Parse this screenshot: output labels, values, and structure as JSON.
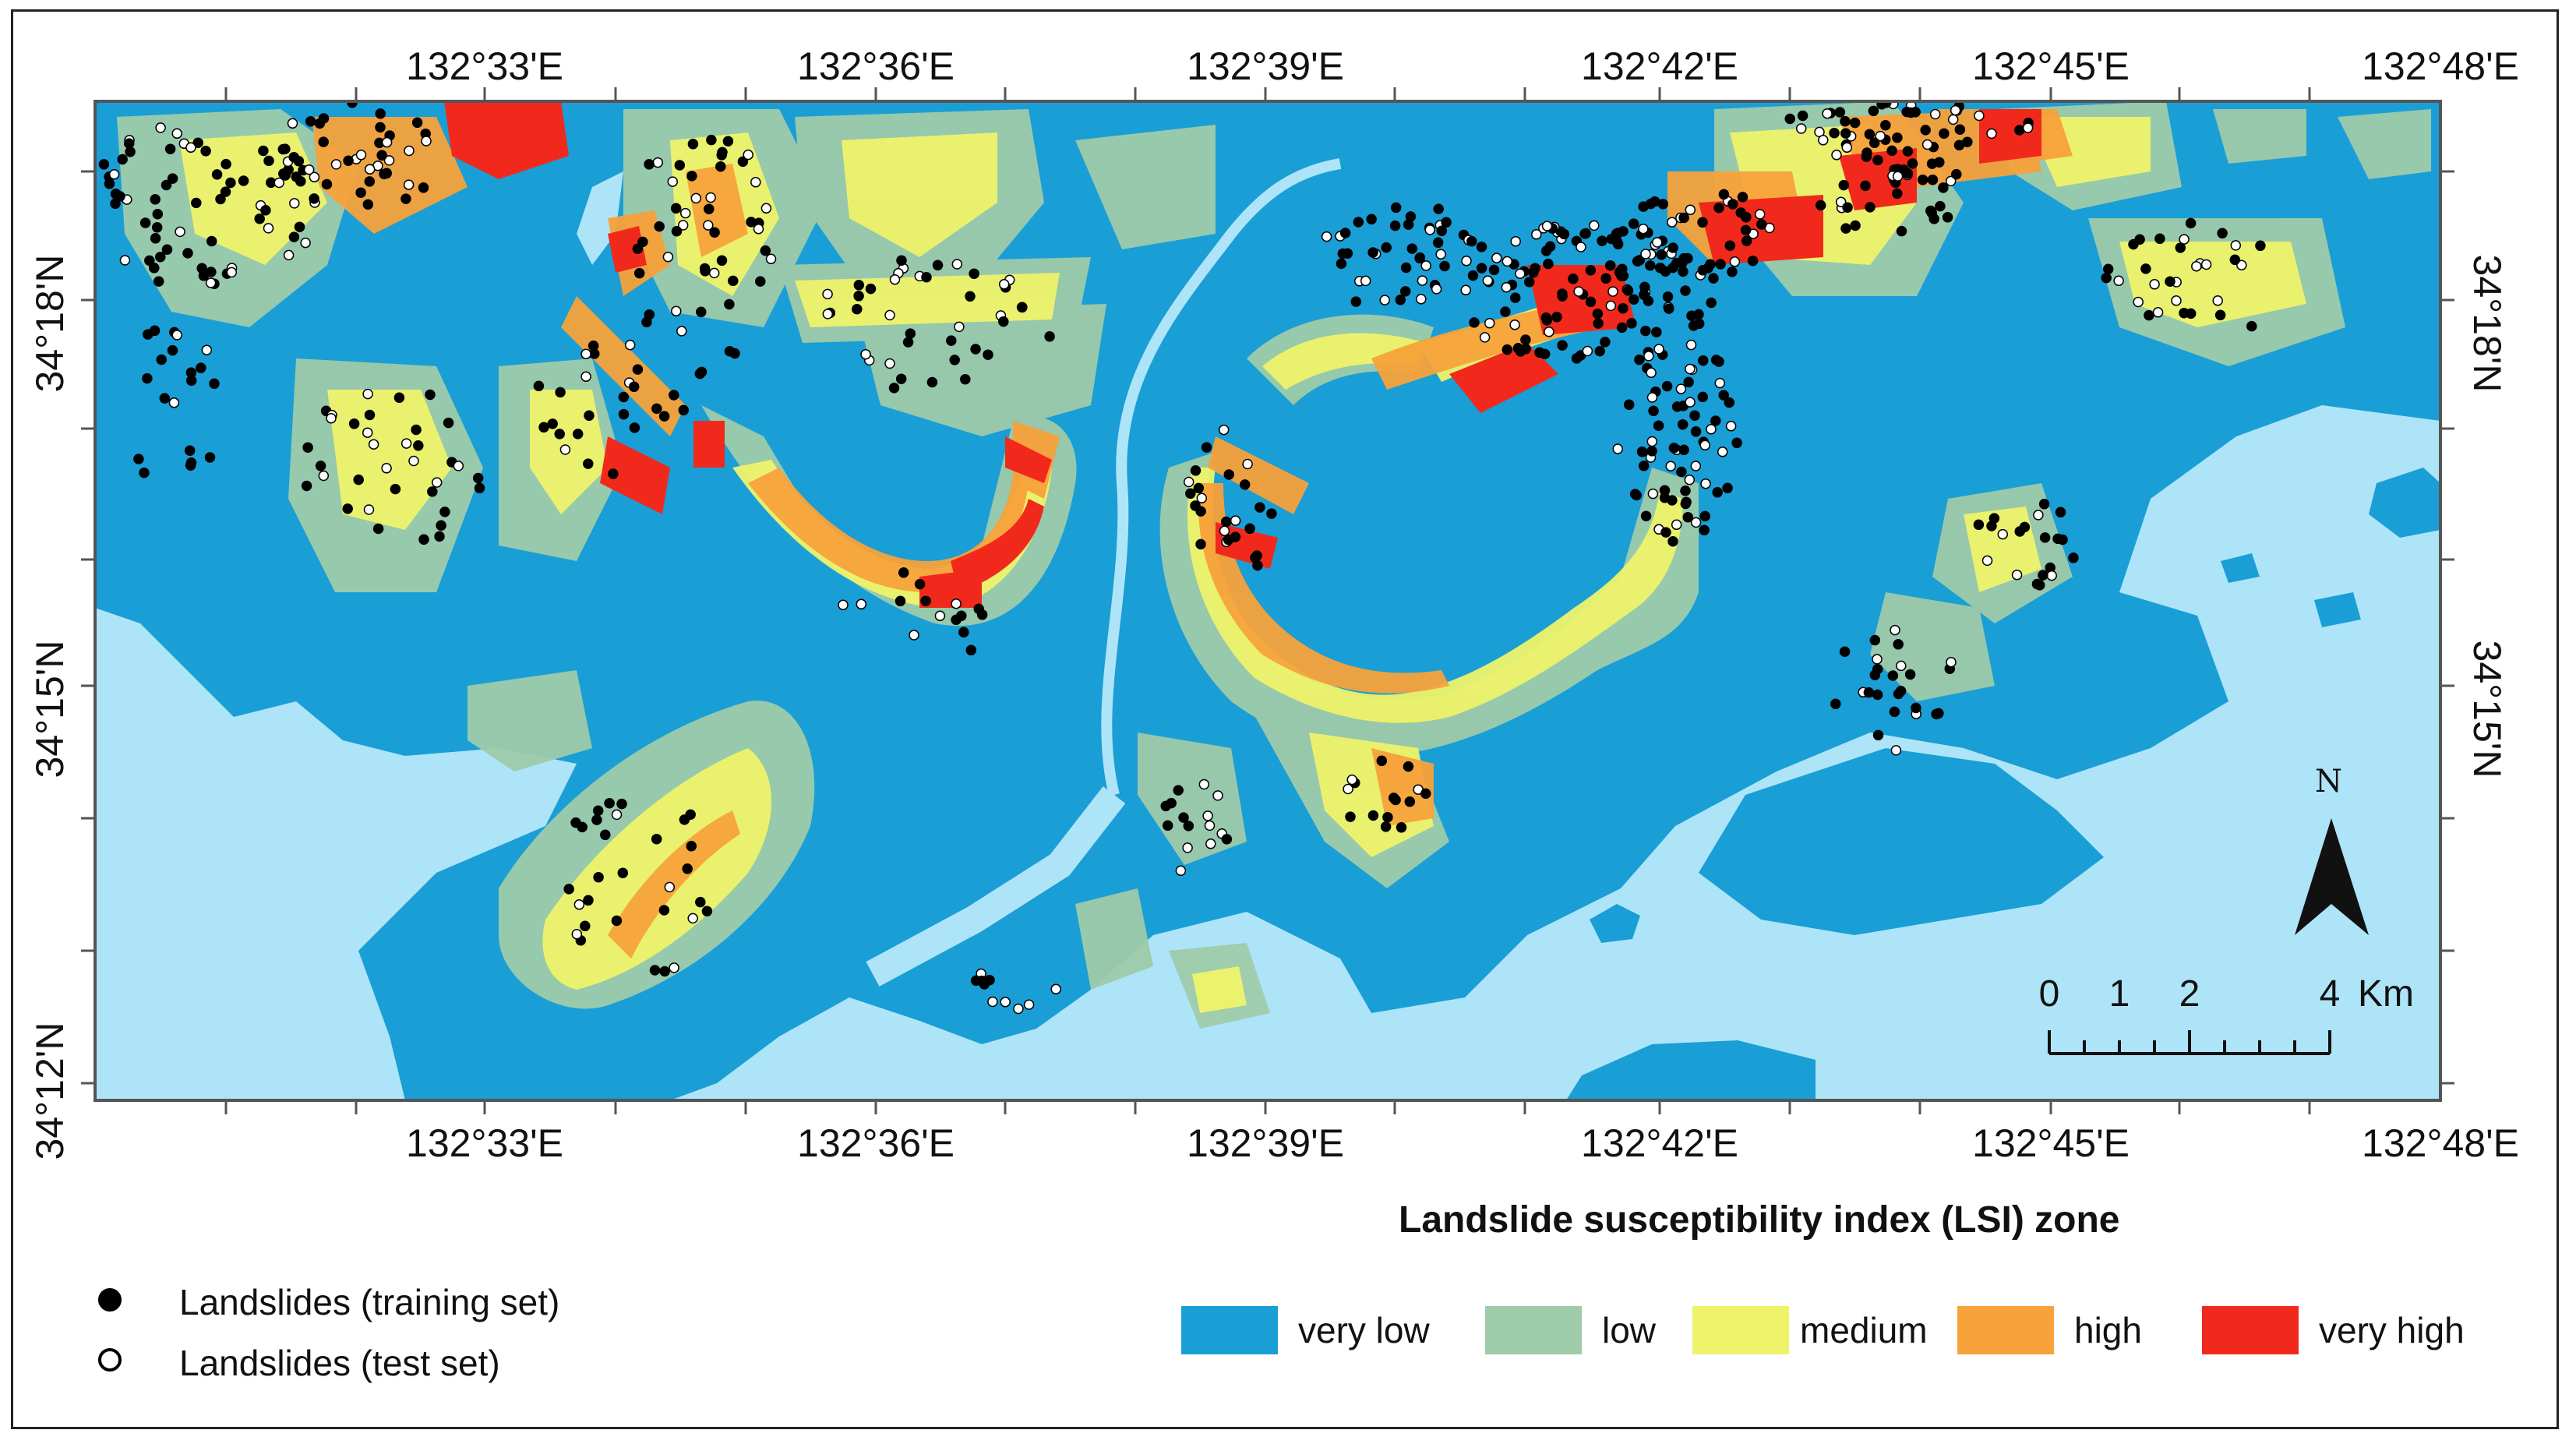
{
  "map": {
    "top_lon_labels": [
      "132°33'E",
      "132°36'E",
      "132°39'E",
      "132°42'E",
      "132°45'E",
      "132°48'E"
    ],
    "bottom_lon_labels": [
      "132°33'E",
      "132°36'E",
      "132°39'E",
      "132°42'E",
      "132°45'E",
      "132°48'E"
    ],
    "left_lat_labels": [
      "34°18'N",
      "34°15'N",
      "34°12'N"
    ],
    "right_lat_labels": [
      "34°18'N",
      "34°15'N"
    ],
    "colors": {
      "water": "#aee4f7",
      "very_low": "#1a9ed6",
      "low": "#9ecbaa",
      "medium": "#eef36a",
      "high": "#f7a23a",
      "very_high": "#f1291c"
    }
  },
  "legend": {
    "title": "Landslide susceptibility index (LSI) zone",
    "zones": [
      {
        "label": "very low",
        "color": "#1a9ed6"
      },
      {
        "label": "low",
        "color": "#9ecbaa"
      },
      {
        "label": "medium",
        "color": "#eef36a"
      },
      {
        "label": "high",
        "color": "#f7a23a"
      },
      {
        "label": "very high",
        "color": "#f1291c"
      }
    ],
    "points": [
      {
        "label": "Landslides (training set)",
        "style": "filled-black"
      },
      {
        "label": "Landslides (test set)",
        "style": "hollow-white"
      }
    ]
  },
  "north_arrow": {
    "label": "N"
  },
  "scale_bar": {
    "ticks": [
      "0",
      "1",
      "2",
      "4"
    ],
    "unit": "Km"
  }
}
